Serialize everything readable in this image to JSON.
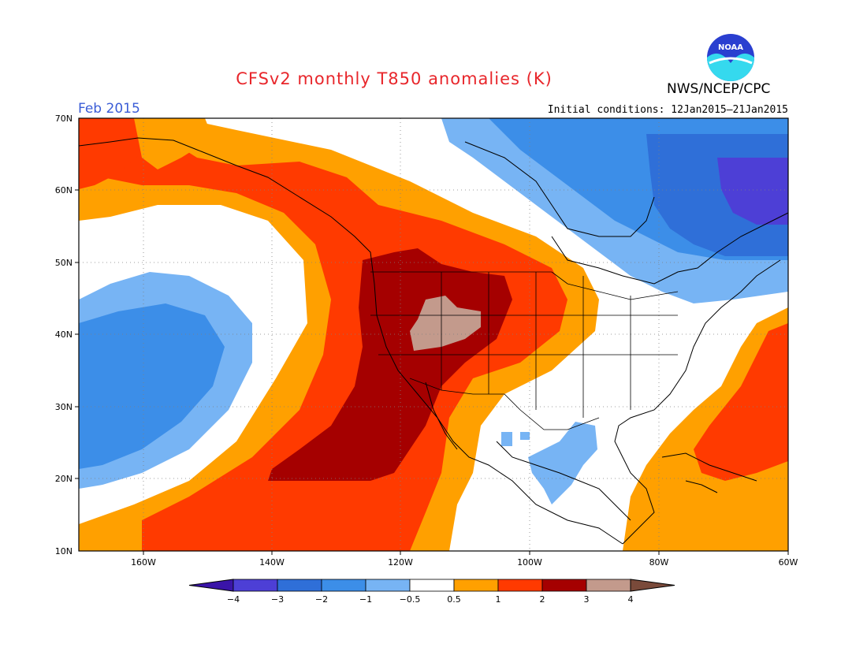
{
  "title": "CFSv2 monthly T850 anomalies (K)",
  "agency": "NWS/NCEP/CPC",
  "logo_text": "NOAA",
  "forecast_month": "Feb 2015",
  "initial_conditions": "Initial conditions: 12Jan2015–21Jan2015",
  "map": {
    "lon_range": [
      -172,
      -60
    ],
    "lat_range": [
      10,
      70
    ],
    "lat_labels": [
      "70N",
      "60N",
      "50N",
      "40N",
      "30N",
      "20N",
      "10N"
    ],
    "lon_labels": [
      "160W",
      "140W",
      "120W",
      "100W",
      "80W",
      "60W"
    ]
  },
  "colorbar": {
    "labels": [
      "−4",
      "−3",
      "−2",
      "−1",
      "−0.5",
      "0.5",
      "1",
      "2",
      "3",
      "4"
    ],
    "colors": [
      "#3a14a8",
      "#4d3fd6",
      "#2f6fd8",
      "#3c8ee8",
      "#77b4f4",
      "#ffffff",
      "#ffa000",
      "#ff3a00",
      "#a50000",
      "#c39a8c",
      "#7a4a3a"
    ]
  },
  "colors": {
    "title": "#e8262b",
    "month": "#3a5cd6"
  }
}
